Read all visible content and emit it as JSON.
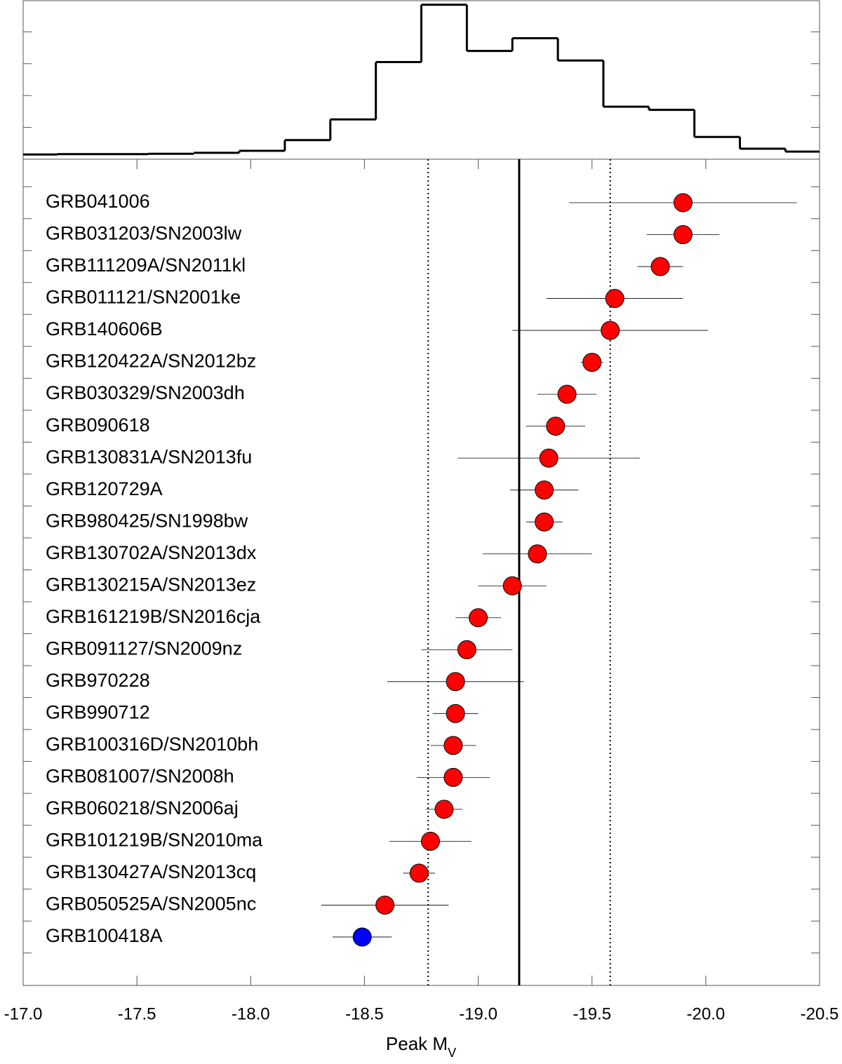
{
  "chart_data": [
    {
      "type": "histogram",
      "bins": [
        -16.95,
        -17.15,
        -17.35,
        -17.55,
        -17.75,
        -17.95,
        -18.15,
        -18.35,
        -18.55,
        -18.75,
        -18.95,
        -19.15,
        -19.35,
        -19.55,
        -19.75,
        -19.95,
        -20.15,
        -20.35,
        -20.55
      ],
      "counts": [
        0.03,
        0.032,
        0.032,
        0.034,
        0.04,
        0.053,
        0.12,
        0.25,
        0.61,
        0.97,
        0.68,
        0.76,
        0.62,
        0.33,
        0.31,
        0.14,
        0.066,
        0.048
      ],
      "color": "#000000",
      "xlim": [
        -17,
        -20.5
      ],
      "ylim": [
        0,
        1
      ],
      "yticks": [
        0.2,
        0.4,
        0.6,
        0.8
      ]
    },
    {
      "type": "dot",
      "categories": [
        "GRB041006",
        "GRB031203/SN2003lw",
        "GRB111209A/SN2011kl",
        "GRB011121/SN2001ke",
        "GRB140606B",
        "GRB120422A/SN2012bz",
        "GRB030329/SN2003dh",
        "GRB090618",
        "GRB130831A/SN2013fu",
        "GRB120729A",
        "GRB980425/SN1998bw",
        "GRB130702A/SN2013dx",
        "GRB130215A/SN2013ez",
        "GRB161219B/SN2016cja",
        "GRB091127/SN2009nz",
        "GRB970228",
        "GRB990712",
        "GRB100316D/SN2010bh",
        "GRB081007/SN2008h",
        "GRB060218/SN2006aj",
        "GRB101219B/SN2010ma",
        "GRB130427A/SN2013cq",
        "GRB050525A/SN2005nc",
        "GRB100418A"
      ],
      "values": [
        -19.9,
        -19.9,
        -19.8,
        -19.6,
        -19.58,
        -19.5,
        -19.39,
        -19.34,
        -19.31,
        -19.29,
        -19.29,
        -19.26,
        -19.15,
        -19.0,
        -18.95,
        -18.9,
        -18.9,
        -18.89,
        -18.89,
        -18.85,
        -18.79,
        -18.74,
        -18.59,
        -18.49
      ],
      "errors": [
        0.5,
        0.16,
        0.1,
        0.3,
        0.43,
        0.05,
        0.13,
        0.13,
        0.4,
        0.15,
        0.08,
        0.24,
        0.15,
        0.1,
        0.2,
        0.3,
        0.1,
        0.1,
        0.16,
        0.08,
        0.18,
        0.07,
        0.28,
        0.13
      ],
      "colors": [
        "#ff0000",
        "#ff0000",
        "#ff0000",
        "#ff0000",
        "#ff0000",
        "#ff0000",
        "#ff0000",
        "#ff0000",
        "#ff0000",
        "#ff0000",
        "#ff0000",
        "#ff0000",
        "#ff0000",
        "#ff0000",
        "#ff0000",
        "#ff0000",
        "#ff0000",
        "#ff0000",
        "#ff0000",
        "#ff0000",
        "#ff0000",
        "#ff0000",
        "#ff0000",
        "#0000ff"
      ],
      "vlines": [
        {
          "value": -18.78,
          "style": "dotted"
        },
        {
          "value": -19.18,
          "style": "solid"
        },
        {
          "value": -19.58,
          "style": "dotted"
        }
      ],
      "xlim": [
        -17,
        -20.5
      ],
      "xticks": [
        {
          "value": -17,
          "label": "-17.0"
        },
        -17.5,
        {
          "value": -18,
          "label": "-18.0"
        },
        -18.5,
        {
          "value": -19,
          "label": "-19.0"
        },
        -19.5,
        {
          "value": -20,
          "label": "-20.0"
        },
        -20.5
      ],
      "xlabel": "Peak M",
      "xlabel_subscript": "V"
    }
  ]
}
